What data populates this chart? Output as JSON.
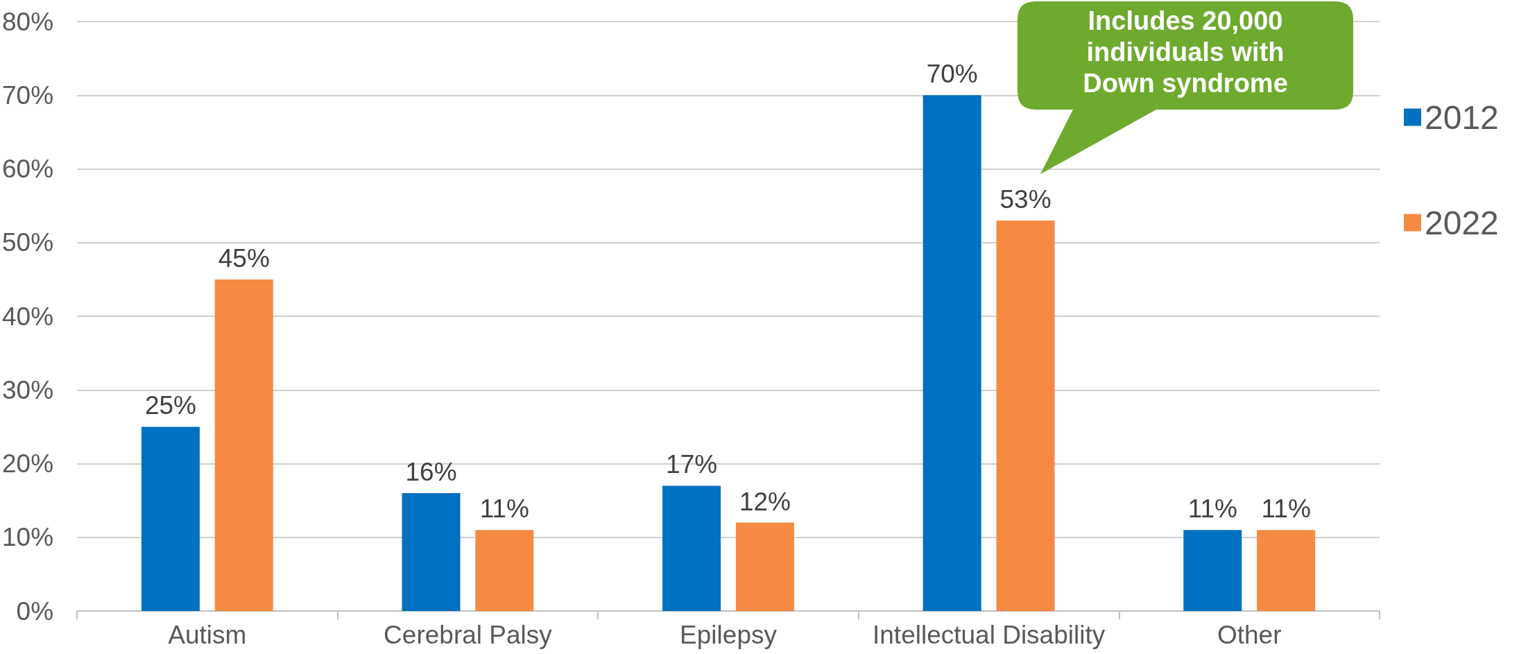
{
  "chart_data": {
    "type": "bar",
    "categories": [
      "Autism",
      "Cerebral Palsy",
      "Epilepsy",
      "Intellectual Disability",
      "Other"
    ],
    "series": [
      {
        "name": "2012",
        "color": "#0070c0",
        "values": [
          25,
          16,
          17,
          70,
          11
        ],
        "value_labels": [
          "25%",
          "16%",
          "17%",
          "70%",
          "11%"
        ]
      },
      {
        "name": "2022",
        "color": "#f68a42",
        "values": [
          45,
          11,
          12,
          53,
          11
        ],
        "value_labels": [
          "45%",
          "11%",
          "12%",
          "53%",
          "11%"
        ]
      }
    ],
    "ylim": [
      0,
      80
    ],
    "yticks": [
      {
        "value": 0,
        "label": "0%"
      },
      {
        "value": 10,
        "label": "10%"
      },
      {
        "value": 20,
        "label": "20%"
      },
      {
        "value": 30,
        "label": "30%"
      },
      {
        "value": 40,
        "label": "40%"
      },
      {
        "value": 50,
        "label": "50%"
      },
      {
        "value": 60,
        "label": "60%"
      },
      {
        "value": 70,
        "label": "70%"
      },
      {
        "value": 80,
        "label": "80%"
      }
    ],
    "grid": "y",
    "legend": "right",
    "annotations": [
      "Includes 20,000 individuals with Down syndrome"
    ]
  }
}
